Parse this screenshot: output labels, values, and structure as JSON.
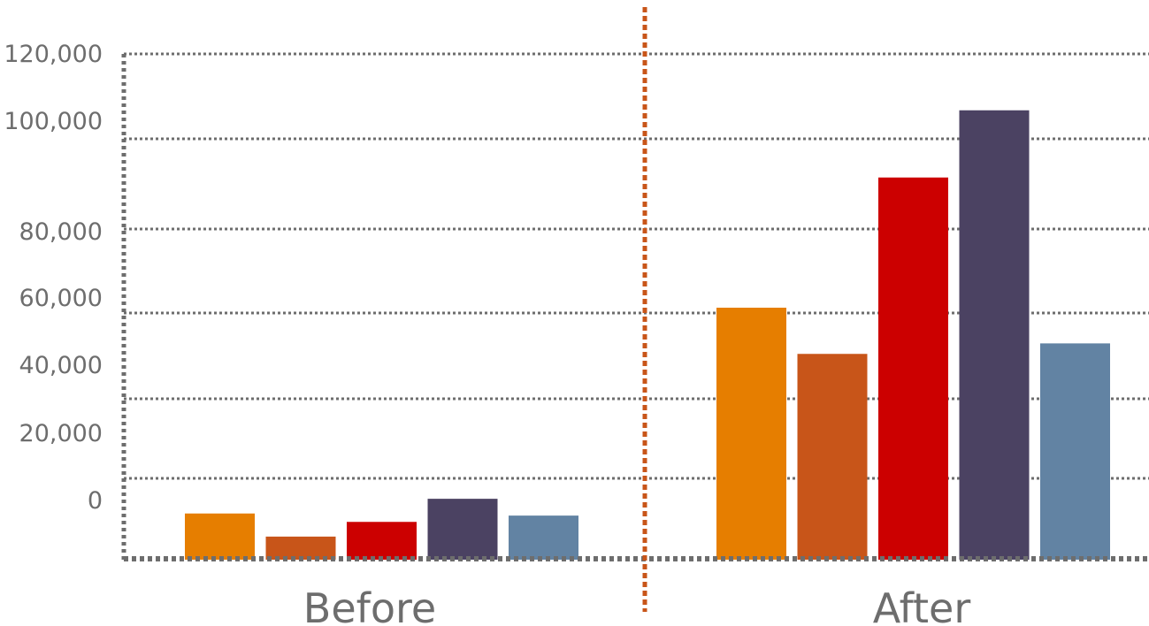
{
  "chart_data": {
    "type": "bar",
    "categories": [
      "Before",
      "After"
    ],
    "yticks": [
      "120,000",
      "100,000",
      "80,000",
      "60,000",
      "40,000",
      "20,000",
      "0"
    ],
    "ylim": [
      0,
      120000
    ],
    "series": [
      {
        "values": [
          11000,
          60000
        ],
        "color": "#e67e00"
      },
      {
        "values": [
          5500,
          49000
        ],
        "color": "#c85519"
      },
      {
        "values": [
          9000,
          91000
        ],
        "color": "#cc0000"
      },
      {
        "values": [
          14500,
          107000
        ],
        "color": "#4b4262"
      },
      {
        "values": [
          10500,
          51500
        ],
        "color": "#6283a3"
      }
    ],
    "grid": true,
    "separator_color": "#c85519"
  }
}
